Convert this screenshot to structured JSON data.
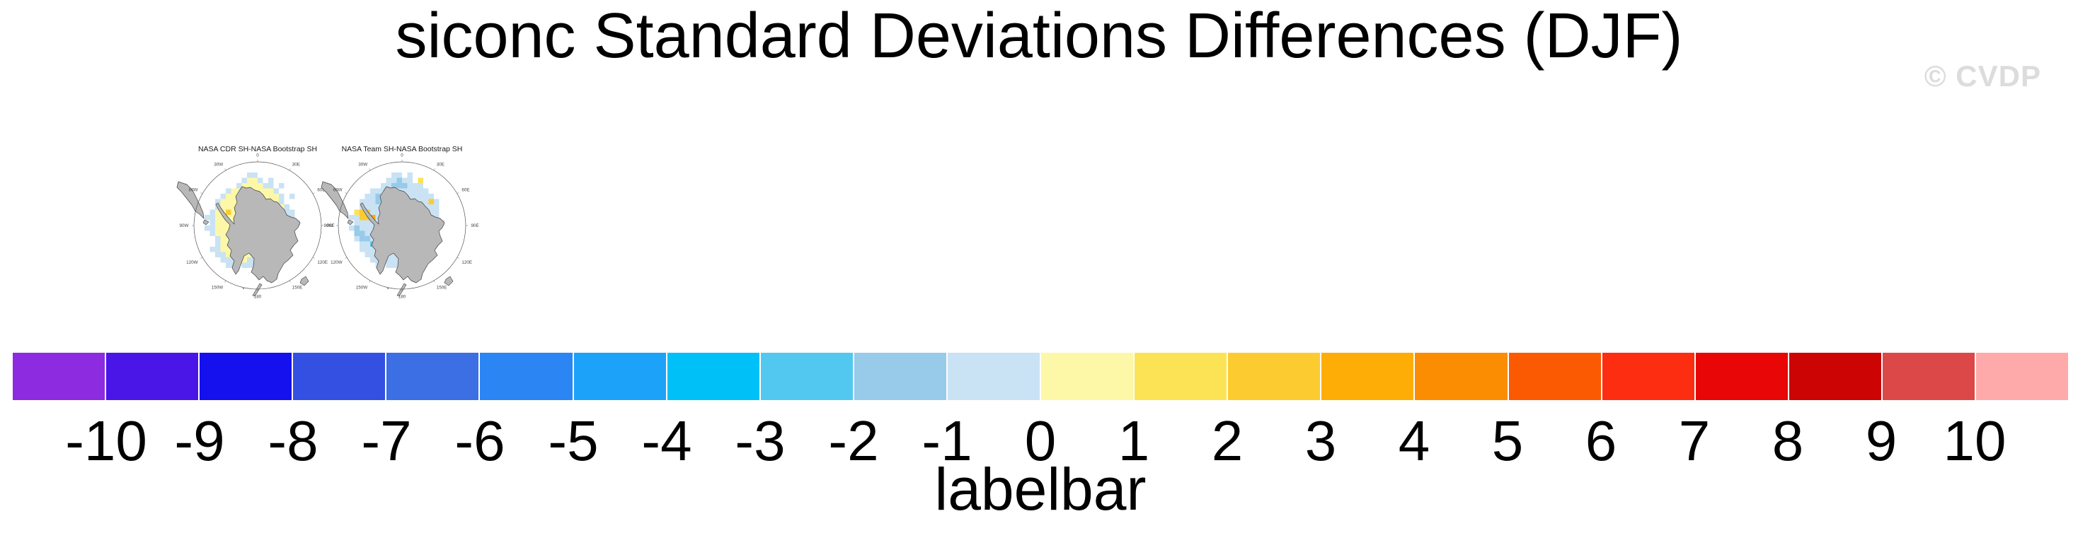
{
  "header": {
    "title": "siconc Standard Deviations Differences (DJF)",
    "watermark": "© CVDP",
    "watermark_color": "#dcdcdc"
  },
  "chart_data": {
    "type": "heatmap",
    "variable": "siconc",
    "season": "DJF",
    "title": "siconc Standard Deviations Differences (DJF)",
    "panels": [
      {
        "title": "NASA CDR SH-NASA Bootstrap SH",
        "projection": "south-polar-stereographic",
        "grid": [
          "........................",
          "........................",
          "..........LL............",
          ".........LYYL.L.........",
          "........LYYYYLL.L.......",
          "......LYYYYYYYYL........",
          ".....LYYYYYYOYYYL.L.....",
          "....LYYYYYYYYYYYL.......",
          "....LYYYYYYOYYYYYL......",
          "...LYYGYYYYYYYYYYLL.....",
          "..LLYYYYYYYYYYYYYYL.....",
          "...LYYYYYYYYYYYYYYLL....",
          "..LLYYYYYYYYYYYYYLL.....",
          "...LYYYYYYYYYYYYYYL.....",
          "....LYYYYYYYYYYYRLL.....",
          "....LYYYYYYYYYYYYL......",
          "...LLYYYYYYYYYYYLL......",
          "....LLYYLYYYYYLL........",
          ".....LLLYYLLYLL.........",
          "......LL.LLL............",
          "........................",
          "........................",
          "........................",
          "........................"
        ]
      },
      {
        "title": "NASA Team SH-NASA Bootstrap SH",
        "projection": "south-polar-stereographic",
        "grid": [
          "........................",
          "........................",
          "..........LL.L..........",
          ".........LLMLL.y........",
          "........LLMMMLLL........",
          "......LLLMMLLLLLL.......",
          ".....LLMMLLLLLLLLL......",
          "....LLLMLLLLLLLLLGL.....",
          "....LLLLLLLLLLLLLLL.....",
          "...yGGLLLLLLLLLLLLL.....",
          "..LLGGOLLLLLLLLLLLL.....",
          "...LLLLLLLLLLLLLLMLL....",
          "..LMLLLLLLLLLLLLLLL.....",
          "...MMLLLLLLLLLLLyL......",
          "...LMMLLSCLLLLLLLL......",
          "....LLSSCCSLLLOLL.......",
          "....LLLSCSLLLLLLL.......",
          ".....LLLLLLLyLL.........",
          "......LLLLLLL...........",
          ".......L.LLL............",
          "........................",
          "........................",
          "........................",
          "........................"
        ]
      }
    ],
    "cell_colors": {
      "L": "#C9E2F4",
      "M": "#98CAEA",
      "S": "#52C8F0",
      "C": "#00C0F8",
      "Y": "#FDF8A8",
      "y": "#FCE355",
      "G": "#FCCB30",
      "O": "#FDAD05",
      "R": "#F32A0E"
    },
    "cell_value_bins": {
      "C": "-4 to -3",
      "S": "-3 to -2",
      "M": "-2 to -1",
      "L": "-1 to 0",
      "Y": "0 to 1",
      "y": "1 to 2",
      "G": "2 to 3",
      "O": "3 to 4",
      "R": "6 to 8"
    },
    "lon_labels": [
      {
        "text": "0",
        "angle": 0
      },
      {
        "text": "30E",
        "angle": 30
      },
      {
        "text": "60E",
        "angle": 60
      },
      {
        "text": "90E",
        "angle": 90
      },
      {
        "text": "120E",
        "angle": 120
      },
      {
        "text": "150E",
        "angle": 150
      },
      {
        "text": "180",
        "angle": 180
      },
      {
        "text": "150W",
        "angle": 210
      },
      {
        "text": "120W",
        "angle": 240
      },
      {
        "text": "90W",
        "angle": 270
      },
      {
        "text": "60W",
        "angle": 300
      },
      {
        "text": "30W",
        "angle": 330
      }
    ],
    "labelbar": {
      "caption": "labelbar",
      "tick_labels": [
        "-10",
        "-9",
        "-8",
        "-7",
        "-6",
        "-5",
        "-4",
        "-3",
        "-2",
        "-1",
        "0",
        "1",
        "2",
        "3",
        "4",
        "5",
        "6",
        "7",
        "8",
        "9",
        "10"
      ],
      "colors": [
        "#8D2BE0",
        "#4A16E8",
        "#1410EE",
        "#3450E2",
        "#3C6EE4",
        "#2B85F2",
        "#1CA2F8",
        "#00C0F8",
        "#52C8F0",
        "#98CAEA",
        "#C9E2F4",
        "#FDF8A8",
        "#FCE355",
        "#FCCB30",
        "#FDAD05",
        "#FB8D03",
        "#FB5A03",
        "#FD2D12",
        "#E80606",
        "#CC0404",
        "#DC4848",
        "#FFAAAA"
      ]
    },
    "land_color": "#B8B8B8",
    "coast_color": "#3F3F3F"
  }
}
